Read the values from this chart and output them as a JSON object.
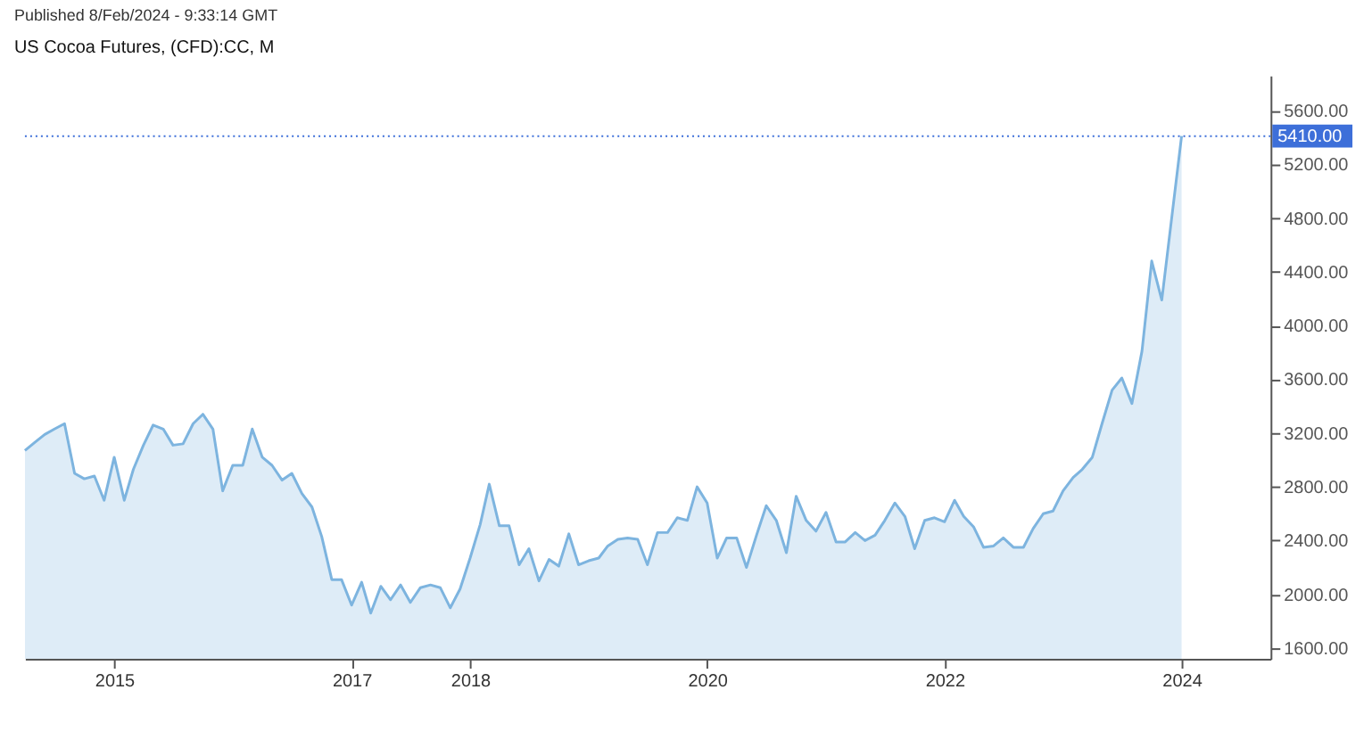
{
  "chart_data": {
    "type": "area",
    "title": "US Cocoa Futures, (CFD):CC, M",
    "annotations": [
      "Published 8/Feb/2024 - 9:33:14 GMT"
    ],
    "x": [
      "2014-04",
      "2014-05",
      "2014-06",
      "2014-07",
      "2014-08",
      "2014-09",
      "2014-10",
      "2014-11",
      "2014-12",
      "2015-01",
      "2015-02",
      "2015-03",
      "2015-04",
      "2015-05",
      "2015-06",
      "2015-07",
      "2015-08",
      "2015-09",
      "2015-10",
      "2015-11",
      "2015-12",
      "2016-01",
      "2016-02",
      "2016-03",
      "2016-04",
      "2016-05",
      "2016-06",
      "2016-07",
      "2016-08",
      "2016-09",
      "2016-10",
      "2016-11",
      "2016-12",
      "2017-01",
      "2017-02",
      "2017-03",
      "2017-04",
      "2017-05",
      "2017-06",
      "2017-07",
      "2017-08",
      "2017-09",
      "2017-10",
      "2017-11",
      "2017-12",
      "2018-01",
      "2018-02",
      "2018-03",
      "2018-04",
      "2018-05",
      "2018-06",
      "2018-07",
      "2018-08",
      "2018-09",
      "2018-10",
      "2018-11",
      "2018-12",
      "2019-01",
      "2019-02",
      "2019-03",
      "2019-04",
      "2019-05",
      "2019-06",
      "2019-07",
      "2019-08",
      "2019-09",
      "2019-10",
      "2019-11",
      "2019-12",
      "2020-01",
      "2020-02",
      "2020-03",
      "2020-04",
      "2020-05",
      "2020-06",
      "2020-07",
      "2020-08",
      "2020-09",
      "2020-10",
      "2020-11",
      "2020-12",
      "2021-01",
      "2021-02",
      "2021-03",
      "2021-04",
      "2021-05",
      "2021-06",
      "2021-07",
      "2021-08",
      "2021-09",
      "2021-10",
      "2021-11",
      "2021-12",
      "2022-01",
      "2022-02",
      "2022-03",
      "2022-04",
      "2022-05",
      "2022-06",
      "2022-07",
      "2022-08",
      "2022-09",
      "2022-10",
      "2022-11",
      "2022-12",
      "2023-01",
      "2023-02",
      "2023-03",
      "2023-04",
      "2023-05",
      "2023-06",
      "2023-07",
      "2023-08",
      "2023-09",
      "2023-10",
      "2023-11",
      "2024-01"
    ],
    "series": [
      {
        "color": "#7db4df",
        "values": [
          3070,
          3130,
          3190,
          3230,
          3270,
          2900,
          2860,
          2880,
          2700,
          3020,
          2700,
          2930,
          3110,
          3260,
          3230,
          3110,
          3120,
          3270,
          3340,
          3230,
          2770,
          2960,
          2960,
          3230,
          3020,
          2960,
          2850,
          2900,
          2750,
          2650,
          2430,
          2110,
          2110,
          1920,
          2090,
          1860,
          2060,
          1960,
          2070,
          1940,
          2050,
          2070,
          2050,
          1900,
          2040,
          2270,
          2520,
          2820,
          2510,
          2510,
          2220,
          2340,
          2100,
          2260,
          2210,
          2450,
          2220,
          2250,
          2270,
          2360,
          2410,
          2420,
          2410,
          2220,
          2460,
          2460,
          2570,
          2550,
          2800,
          2680,
          2270,
          2420,
          2420,
          2200,
          2440,
          2660,
          2550,
          2310,
          2730,
          2550,
          2470,
          2610,
          2390,
          2390,
          2460,
          2400,
          2440,
          2550,
          2680,
          2580,
          2340,
          2550,
          2570,
          2540,
          2700,
          2580,
          2500,
          2350,
          2360,
          2420,
          2350,
          2350,
          2490,
          2600,
          2620,
          2770,
          2870,
          2930,
          3020,
          3270,
          3520,
          3610,
          3420,
          3810,
          4480,
          4190,
          5410
        ]
      }
    ],
    "xlim": [
      "2014-04",
      "2024-10"
    ],
    "xticks": [
      "2015",
      "2017",
      "2018",
      "2020",
      "2022",
      "2024"
    ],
    "ylim": [
      1520,
      5860
    ],
    "yticks": [
      {
        "value": 1600,
        "label": "1600.00"
      },
      {
        "value": 2000,
        "label": "2000.00"
      },
      {
        "value": 2400,
        "label": "2400.00"
      },
      {
        "value": 2800,
        "label": "2800.00"
      },
      {
        "value": 3200,
        "label": "3200.00"
      },
      {
        "value": 3600,
        "label": "3600.00"
      },
      {
        "value": 4000,
        "label": "4000.00"
      },
      {
        "value": 4400,
        "label": "4400.00"
      },
      {
        "value": 4800,
        "label": "4800.00"
      },
      {
        "value": 5200,
        "label": "5200.00"
      },
      {
        "value": 5600,
        "label": "5600.00"
      }
    ],
    "ref_lines": [
      {
        "axis": "y",
        "value": 5410,
        "label": "5410.00",
        "color": "#3d6fd9",
        "line_style": "dotted"
      }
    ],
    "grid": false
  }
}
